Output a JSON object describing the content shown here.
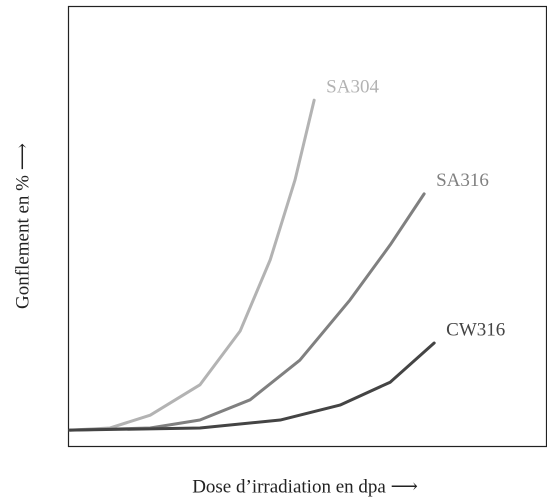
{
  "chart_data": {
    "type": "line",
    "xlabel": "Dose d’irradiation en dpa ⟶",
    "ylabel": "Gonflement en % ⟶",
    "xlim": [
      0,
      100
    ],
    "ylim": [
      0,
      100
    ],
    "series": [
      {
        "name": "SA304",
        "color": "#b3b3b3",
        "x": [
          0.4,
          8.8,
          17.2,
          27.6,
          36,
          42.3,
          47.5,
          51.5
        ],
        "values": [
          3.6,
          4.1,
          7,
          13.9,
          26.1,
          42.3,
          60.5,
          78.6
        ]
      },
      {
        "name": "SA316",
        "color": "#808080",
        "x": [
          0.4,
          17.2,
          27.6,
          38.1,
          48.5,
          59,
          67.4,
          74.5
        ],
        "values": [
          3.6,
          4.1,
          5.9,
          10.5,
          19.5,
          33.2,
          45.7,
          57.3
        ]
      },
      {
        "name": "CW316",
        "color": "#444444",
        "x": [
          0.4,
          27.6,
          44.4,
          56.9,
          67.4,
          76.6
        ],
        "values": [
          3.6,
          4.1,
          5.9,
          9.3,
          14.5,
          23.4
        ]
      }
    ]
  }
}
